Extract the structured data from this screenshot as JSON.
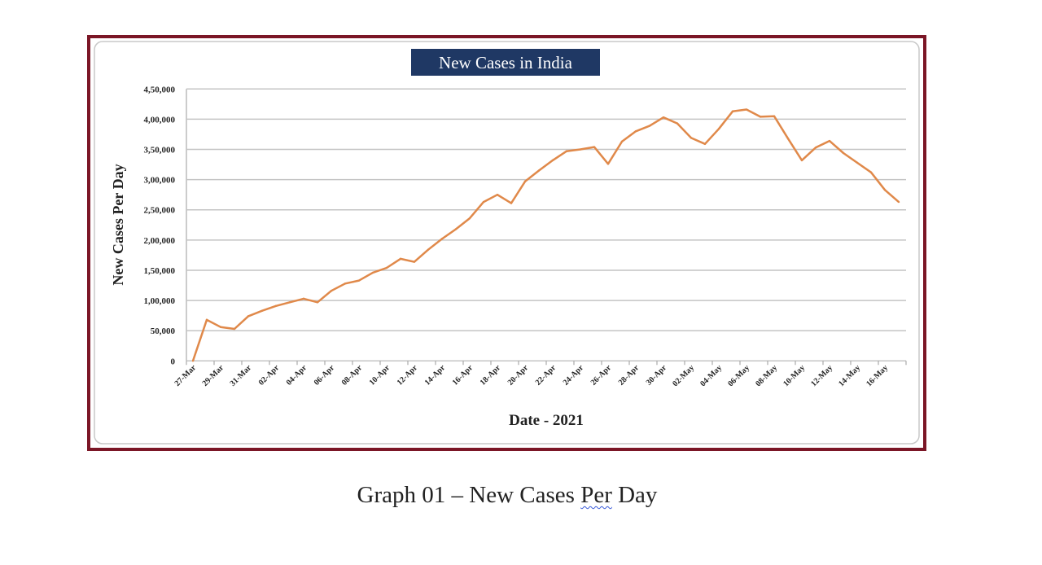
{
  "chart_data": {
    "type": "line",
    "title": "New Cases in India",
    "xlabel": "Date - 2021",
    "ylabel": "New Cases Per Day",
    "ylim": [
      0,
      450000
    ],
    "grid": true,
    "yticks": [
      0,
      50000,
      100000,
      150000,
      200000,
      250000,
      300000,
      350000,
      400000,
      450000
    ],
    "ytick_labels": [
      "0",
      "50,000",
      "1,00,000",
      "1,50,000",
      "2,00,000",
      "2,50,000",
      "3,00,000",
      "3,50,000",
      "4,00,000",
      "4,50,000"
    ],
    "x_tick_labels": [
      "27-Mar",
      "29-Mar",
      "31-Mar",
      "02-Apr",
      "04-Apr",
      "06-Apr",
      "08-Apr",
      "10-Apr",
      "12-Apr",
      "14-Apr",
      "16-Apr",
      "18-Apr",
      "20-Apr",
      "22-Apr",
      "24-Apr",
      "26-Apr",
      "28-Apr",
      "30-Apr",
      "02-May",
      "04-May",
      "06-May",
      "08-May",
      "10-May",
      "12-May",
      "14-May",
      "16-May"
    ],
    "x_start": "27-Mar",
    "x_end": "17-May",
    "series": [
      {
        "name": "New Cases",
        "color": "#e0894a",
        "values": [
          0,
          68000,
          56000,
          53000,
          74000,
          83000,
          91000,
          97000,
          103000,
          97000,
          116000,
          128000,
          133000,
          146000,
          154000,
          169000,
          164000,
          184000,
          202000,
          218000,
          236000,
          263000,
          275000,
          261000,
          297000,
          315000,
          332000,
          347000,
          350000,
          354000,
          326000,
          363000,
          380000,
          389000,
          403000,
          393000,
          369000,
          359000,
          384000,
          413000,
          416000,
          404000,
          405000,
          368000,
          332000,
          353000,
          364000,
          344000,
          328000,
          312000,
          283000,
          263000
        ]
      }
    ]
  },
  "caption": {
    "prefix": "Graph 01 – New Cases ",
    "underlined": "Per",
    "suffix": " Day"
  }
}
